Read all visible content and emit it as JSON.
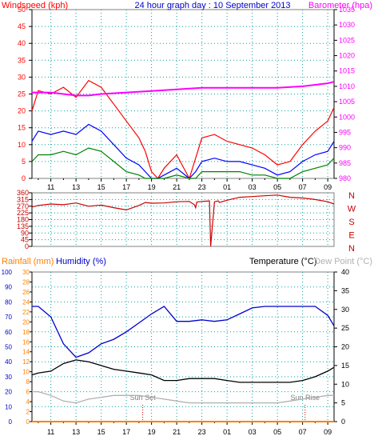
{
  "colors": {
    "wind_speed": "#ff0000",
    "wind_avg": "#0000ff",
    "wind_low": "#008000",
    "barometer": "#ff00ff",
    "direction": "#cc0000",
    "rainfall": "#ff8000",
    "humidity": "#0000cc",
    "temperature": "#000000",
    "dew_point": "#b0b0b0",
    "grid": "#00a0a0",
    "axis": "#000000",
    "frame": "#808080"
  },
  "chart_data": [
    {
      "type": "line",
      "title": "24 hour graph day : 10 September 2013",
      "ylabel": "Windspeed (kph)",
      "y2label": "Barometer (hpa)",
      "ylim": [
        0,
        50
      ],
      "y2lim": [
        980,
        1035
      ],
      "y_ticks": [
        "0",
        "5",
        "10",
        "15",
        "20",
        "25",
        "30",
        "35",
        "40",
        "45",
        "50"
      ],
      "y2_ticks": [
        "980",
        "985",
        "990",
        "995",
        "1000",
        "1005",
        "1010",
        "1015",
        "1020",
        "1025",
        "1030",
        "1035"
      ],
      "x_ticks": [
        "11",
        "13",
        "15",
        "17",
        "19",
        "21",
        "23",
        "01",
        "03",
        "05",
        "07",
        "09"
      ],
      "grid": true,
      "series": [
        {
          "name": "Windspeed",
          "axis": "left",
          "color_key": "wind_speed",
          "x": [
            9.5,
            10,
            11,
            12,
            13,
            14,
            15,
            16,
            17,
            18,
            18.5,
            19,
            19.5,
            20,
            21,
            22,
            22.5,
            23,
            24,
            25,
            26,
            27,
            28,
            29,
            30,
            31,
            32,
            33,
            33.5
          ],
          "values": [
            20,
            26,
            25,
            27,
            24,
            29,
            27,
            22,
            17,
            12,
            8,
            2,
            0,
            3,
            7,
            0,
            6,
            12,
            13,
            11,
            10,
            9,
            7,
            4,
            5,
            10,
            14,
            17,
            21
          ]
        },
        {
          "name": "Wind average",
          "axis": "left",
          "color_key": "wind_avg",
          "x": [
            9.5,
            10,
            11,
            12,
            13,
            14,
            15,
            16,
            17,
            18,
            18.5,
            19,
            19.5,
            20,
            21,
            22,
            22.5,
            23,
            24,
            25,
            26,
            27,
            28,
            29,
            30,
            31,
            32,
            33,
            33.5
          ],
          "values": [
            11,
            14,
            13,
            14,
            13,
            16,
            14,
            10,
            6,
            4,
            2,
            0,
            0,
            1,
            3,
            0,
            2,
            5,
            6,
            5,
            5,
            4,
            3,
            1,
            2,
            5,
            7,
            8,
            11
          ]
        },
        {
          "name": "Wind low",
          "axis": "left",
          "color_key": "wind_low",
          "x": [
            9.5,
            10,
            11,
            12,
            13,
            14,
            15,
            16,
            17,
            18,
            18.5,
            19,
            19.5,
            20,
            21,
            22,
            22.5,
            23,
            24,
            25,
            26,
            27,
            28,
            29,
            30,
            31,
            32,
            33,
            33.5
          ],
          "values": [
            5,
            7,
            7,
            8,
            7,
            9,
            8,
            5,
            2,
            1,
            0,
            0,
            0,
            0,
            1,
            0,
            0,
            2,
            2,
            2,
            2,
            1,
            1,
            0,
            0,
            2,
            3,
            4,
            6
          ]
        },
        {
          "name": "Barometer",
          "axis": "right",
          "color_key": "barometer",
          "x": [
            9.5,
            11,
            13,
            14,
            15,
            17,
            19,
            21,
            23,
            25,
            27,
            29,
            31,
            33,
            33.5
          ],
          "values": [
            1008.0,
            1008.0,
            1007.0,
            1007.0,
            1007.5,
            1008.0,
            1008.5,
            1009.0,
            1009.5,
            1009.5,
            1009.5,
            1009.5,
            1010.0,
            1011.0,
            1011.5
          ]
        }
      ]
    },
    {
      "type": "line",
      "ylim": [
        0,
        360
      ],
      "y_ticks": [
        "0",
        "45",
        "90",
        "135",
        "180",
        "225",
        "270",
        "315",
        "360"
      ],
      "compass_labels": [
        "N",
        "W",
        "S",
        "E",
        "N"
      ],
      "grid": true,
      "series": [
        {
          "name": "Wind direction",
          "color_key": "direction",
          "x": [
            9.5,
            10,
            11,
            12,
            13,
            14,
            15,
            16,
            17,
            18,
            18.5,
            19,
            20,
            21,
            22,
            22.4,
            22.5,
            22.6,
            23,
            23.6,
            23.7,
            24,
            24.3,
            24.4,
            25,
            26,
            27,
            28,
            29,
            30,
            31,
            32,
            33,
            33.5
          ],
          "values": [
            265,
            275,
            285,
            280,
            292,
            270,
            278,
            260,
            245,
            275,
            295,
            290,
            292,
            300,
            302,
            280,
            260,
            298,
            302,
            305,
            0,
            300,
            305,
            295,
            310,
            330,
            335,
            340,
            345,
            330,
            325,
            315,
            300,
            285
          ]
        }
      ]
    },
    {
      "type": "line",
      "labels": {
        "rainfall": "Rainfall (mm)",
        "humidity": "Humidity (%)",
        "temperature": "Temperature (°C)",
        "dew_point": "Dew Point (°C)"
      },
      "annotations": [
        {
          "text": "Sun Set",
          "x": 18.3
        },
        {
          "text": "Sun Rise",
          "x": 31.2
        }
      ],
      "rain_lim": [
        0,
        30
      ],
      "humidity_lim": [
        0,
        100
      ],
      "temp_lim": [
        0,
        40
      ],
      "rain_ticks": [
        "0",
        "2",
        "4",
        "6",
        "8",
        "10",
        "12",
        "14",
        "16",
        "18",
        "20",
        "22",
        "24",
        "26",
        "28",
        "30"
      ],
      "humidity_ticks": [
        "0",
        "10",
        "20",
        "30",
        "40",
        "50",
        "60",
        "70",
        "80",
        "90",
        "100"
      ],
      "temp_ticks": [
        "0",
        "5",
        "10",
        "15",
        "20",
        "25",
        "30",
        "35",
        "40"
      ],
      "grid": true,
      "series": [
        {
          "name": "Humidity",
          "axis": "humidity",
          "color_key": "humidity",
          "x": [
            9.5,
            10,
            11,
            12,
            13,
            14,
            15,
            16,
            17,
            18,
            19,
            20,
            21,
            22,
            23,
            24,
            25,
            26,
            27,
            28,
            29,
            30,
            31,
            32,
            33,
            33.5
          ],
          "values": [
            77,
            77,
            70,
            52,
            43,
            46,
            52,
            55,
            60,
            66,
            72,
            77,
            67,
            67,
            68,
            67,
            68,
            72,
            76,
            77,
            77,
            77,
            77,
            77,
            71,
            64
          ]
        },
        {
          "name": "Temperature",
          "axis": "temp",
          "color_key": "temperature",
          "x": [
            9.5,
            10,
            11,
            12,
            13,
            14,
            15,
            16,
            17,
            18,
            19,
            20,
            21,
            22,
            23,
            24,
            25,
            26,
            27,
            28,
            29,
            30,
            31,
            32,
            33,
            33.5
          ],
          "values": [
            12.5,
            13,
            13.5,
            15.5,
            16.5,
            16,
            15,
            14,
            13.5,
            13,
            12.5,
            11,
            11,
            11.5,
            11.5,
            11.5,
            11,
            10.5,
            10.5,
            10.5,
            10.5,
            10.5,
            11,
            12,
            13.5,
            14.5
          ]
        },
        {
          "name": "Dew Point",
          "axis": "temp",
          "color_key": "dew_point",
          "x": [
            9.5,
            10,
            11,
            12,
            13,
            14,
            15,
            16,
            17,
            18,
            19,
            20,
            21,
            22,
            23,
            24,
            25,
            26,
            27,
            28,
            29,
            30,
            31,
            32,
            33,
            33.5
          ],
          "values": [
            8,
            8,
            7,
            5.5,
            5,
            6,
            6.5,
            7,
            7,
            7,
            6.5,
            6,
            5.5,
            5,
            5,
            5,
            5,
            5,
            5,
            5,
            5,
            5.5,
            6,
            6.5,
            7,
            7
          ]
        },
        {
          "name": "Rainfall",
          "axis": "rain",
          "color_key": "rainfall",
          "x": [
            9.5,
            33.5
          ],
          "values": [
            0,
            0
          ]
        }
      ]
    }
  ]
}
